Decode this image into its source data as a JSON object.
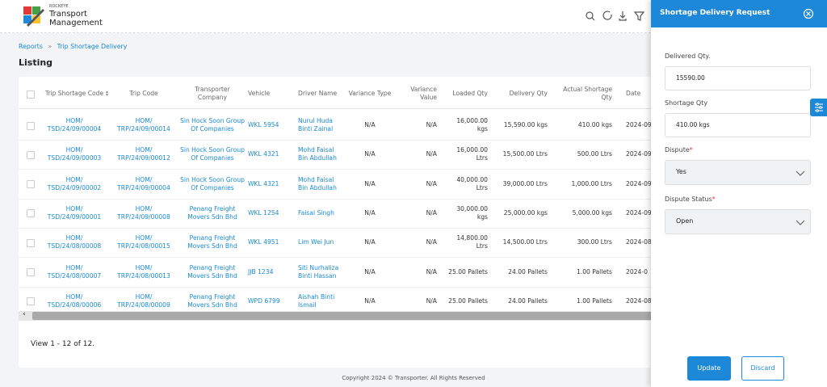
{
  "header": {
    "brand": "ROCKEYE",
    "title_line1": "Transport",
    "title_line2": "Management"
  },
  "breadcrumb": [
    "Reports",
    "Trip Shortage Delivery"
  ],
  "page_title": "Listing",
  "table": {
    "columns": [
      [
        "Trip Shortage Code"
      ],
      [
        "Trip Code"
      ],
      [
        "Transporter",
        "Company"
      ],
      [
        "Vehicle"
      ],
      [
        "Driver Name"
      ],
      [
        "Variance Type"
      ],
      [
        "Variance",
        "Value"
      ],
      [
        "Loaded Qty"
      ],
      [
        "Delivery Qty"
      ],
      [
        "Actual Shortage",
        "Qty"
      ],
      [
        "Date"
      ]
    ],
    "rows": [
      [
        [
          "HOM/",
          "TSD/24/09/00004"
        ],
        [
          "HOM/",
          "TRP/24/09/00014"
        ],
        [
          "Sin Hock Soon Group",
          "Of Companies"
        ],
        [
          "WKL 5954"
        ],
        [
          "Nurul Huda",
          "Binti Zainal"
        ],
        [
          "N/A"
        ],
        [
          "N/A"
        ],
        [
          "16,000.00",
          "kgs"
        ],
        [
          "15,590.00 kgs"
        ],
        [
          "410.00 kgs"
        ],
        [
          "2024-09"
        ]
      ],
      [
        [
          "HOM/",
          "TSD/24/09/00003"
        ],
        [
          "HOM/",
          "TRP/24/09/00012"
        ],
        [
          "Sin Hock Soon Group",
          "Of Companies"
        ],
        [
          "WKL 4321"
        ],
        [
          "Mohd Faisal",
          "Bin Abdullah"
        ],
        [
          "N/A"
        ],
        [
          "N/A"
        ],
        [
          "16,000.00",
          "Ltrs"
        ],
        [
          "15,500.00 Ltrs"
        ],
        [
          "500.00 Ltrs"
        ],
        [
          "2024-09"
        ]
      ],
      [
        [
          "HOM/",
          "TSD/24/09/00002"
        ],
        [
          "HOM/",
          "TRP/24/09/00004"
        ],
        [
          "Sin Hock Soon Group",
          "Of Companies"
        ],
        [
          "WKL 4321"
        ],
        [
          "Mohd Faisal",
          "Bin Abdullah"
        ],
        [
          "N/A"
        ],
        [
          "N/A"
        ],
        [
          "40,000.00",
          "Ltrs"
        ],
        [
          "39,000.00 Ltrs"
        ],
        [
          "1,000.00 Ltrs"
        ],
        [
          "2024-09"
        ]
      ],
      [
        [
          "HOM/",
          "TSD/24/09/00001"
        ],
        [
          "HOM/",
          "TRP/24/09/00008"
        ],
        [
          "Penang Freight",
          "Movers Sdn Bhd"
        ],
        [
          "WKL 1254"
        ],
        [
          "Faisal Singh"
        ],
        [
          "N/A"
        ],
        [
          "N/A"
        ],
        [
          "30,000.00",
          "kgs"
        ],
        [
          "25,000.00 kgs"
        ],
        [
          "5,000.00 kgs"
        ],
        [
          "2024-09"
        ]
      ],
      [
        [
          "HOM/",
          "TSD/24/08/00008"
        ],
        [
          "HOM/",
          "TRP/24/08/00015"
        ],
        [
          "Penang Freight",
          "Movers Sdn Bhd"
        ],
        [
          "WKL 4951"
        ],
        [
          "Lim Wei Jun"
        ],
        [
          "N/A"
        ],
        [
          "N/A"
        ],
        [
          "14,800.00",
          "Ltrs"
        ],
        [
          "14,500.00 Ltrs"
        ],
        [
          "300.00 Ltrs"
        ],
        [
          "2024-08"
        ]
      ],
      [
        [
          "HOM/",
          "TSD/24/08/00007"
        ],
        [
          "HOM/",
          "TRP/24/08/00013"
        ],
        [
          "Penang Freight",
          "Movers Sdn Bhd"
        ],
        [
          "JJB 1234"
        ],
        [
          "Siti Nurhaliza",
          "Binti Hassan"
        ],
        [
          "N/A"
        ],
        [
          "N/A"
        ],
        [
          "25.00 Pallets"
        ],
        [
          "24.00 Pallets"
        ],
        [
          "1.00 Pallets"
        ],
        [
          "2024-0"
        ]
      ],
      [
        [
          "HOM/",
          "TSD/24/08/00006"
        ],
        [
          "HOM/",
          "TRP/24/08/00009"
        ],
        [
          "Penang Freight",
          "Movers Sdn Bhd"
        ],
        [
          "WPD 6799"
        ],
        [
          "Aishah Binti",
          "Ismail"
        ],
        [
          "N/A"
        ],
        [
          "N/A"
        ],
        [
          "25.00 Pallets"
        ],
        [
          "24.00 Pallets"
        ],
        [
          "1.00 Pallets"
        ],
        [
          "2024-08"
        ]
      ]
    ]
  },
  "pagination": "View 1 - 12 of 12.",
  "footer": "Copyright 2024 © Transporter. All Rights Reserved",
  "panel": {
    "title": "Shortage Delivery Request",
    "fields": [
      {
        "label": "Delivered Qty.",
        "value": "15590.00"
      },
      {
        "label": "Shortage Qty",
        "value": "410.00 kgs"
      },
      {
        "label": "Dispute",
        "marker": "*",
        "value": "Yes"
      },
      {
        "label": "Dispute Status",
        "marker": "*",
        "value": "Open"
      }
    ],
    "buttons": [
      "Update",
      "Discard"
    ]
  }
}
